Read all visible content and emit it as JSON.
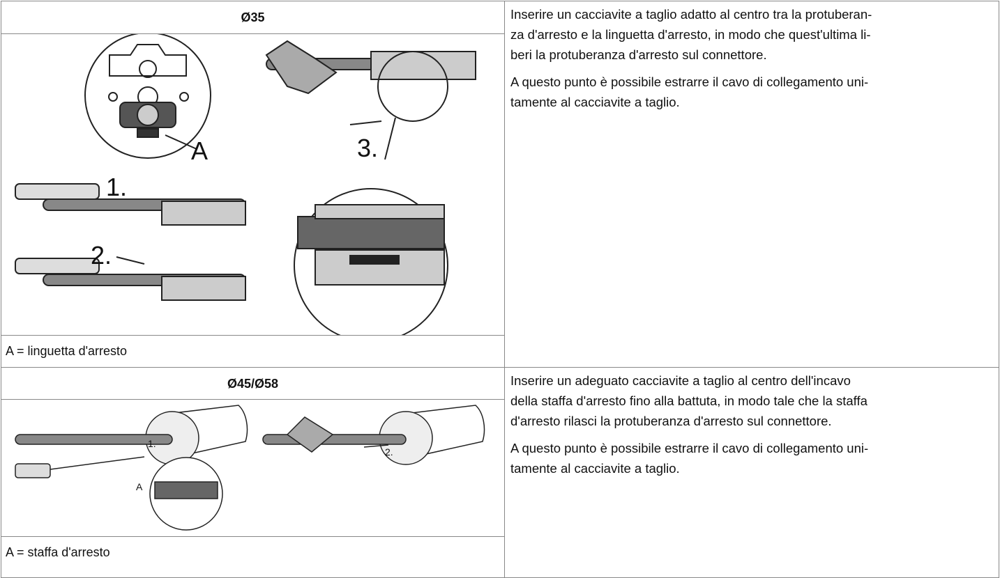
{
  "sections": [
    {
      "heading": "Ø35",
      "caption": "A = linguetta d'arresto",
      "figure_labels": [
        "A",
        "1.",
        "2.",
        "3."
      ],
      "paragraphs": [
        [
          "Inserire un cacciavite a taglio adatto al centro tra la protuberan-",
          "za d'arresto e la linguetta d'arresto, in modo che quest'ultima li-",
          "beri la protuberanza d'arresto sul connettore."
        ],
        [
          "A questo punto è possibile estrarre il cavo di collegamento uni-",
          "tamente al cacciavite a taglio."
        ]
      ]
    },
    {
      "heading": "Ø45/Ø58",
      "caption": "A = staffa d'arresto",
      "figure_labels": [
        "1.",
        "2.",
        "A"
      ],
      "paragraphs": [
        [
          "Inserire un adeguato cacciavite a taglio al centro dell'incavo",
          "della staffa d'arresto fino alla battuta, in modo tale che la staffa",
          "d'arresto rilasci la protuberanza d'arresto sul connettore."
        ],
        [
          "A questo punto è possibile estrarre il cavo di collegamento uni-",
          "tamente al cacciavite a taglio."
        ]
      ]
    }
  ]
}
